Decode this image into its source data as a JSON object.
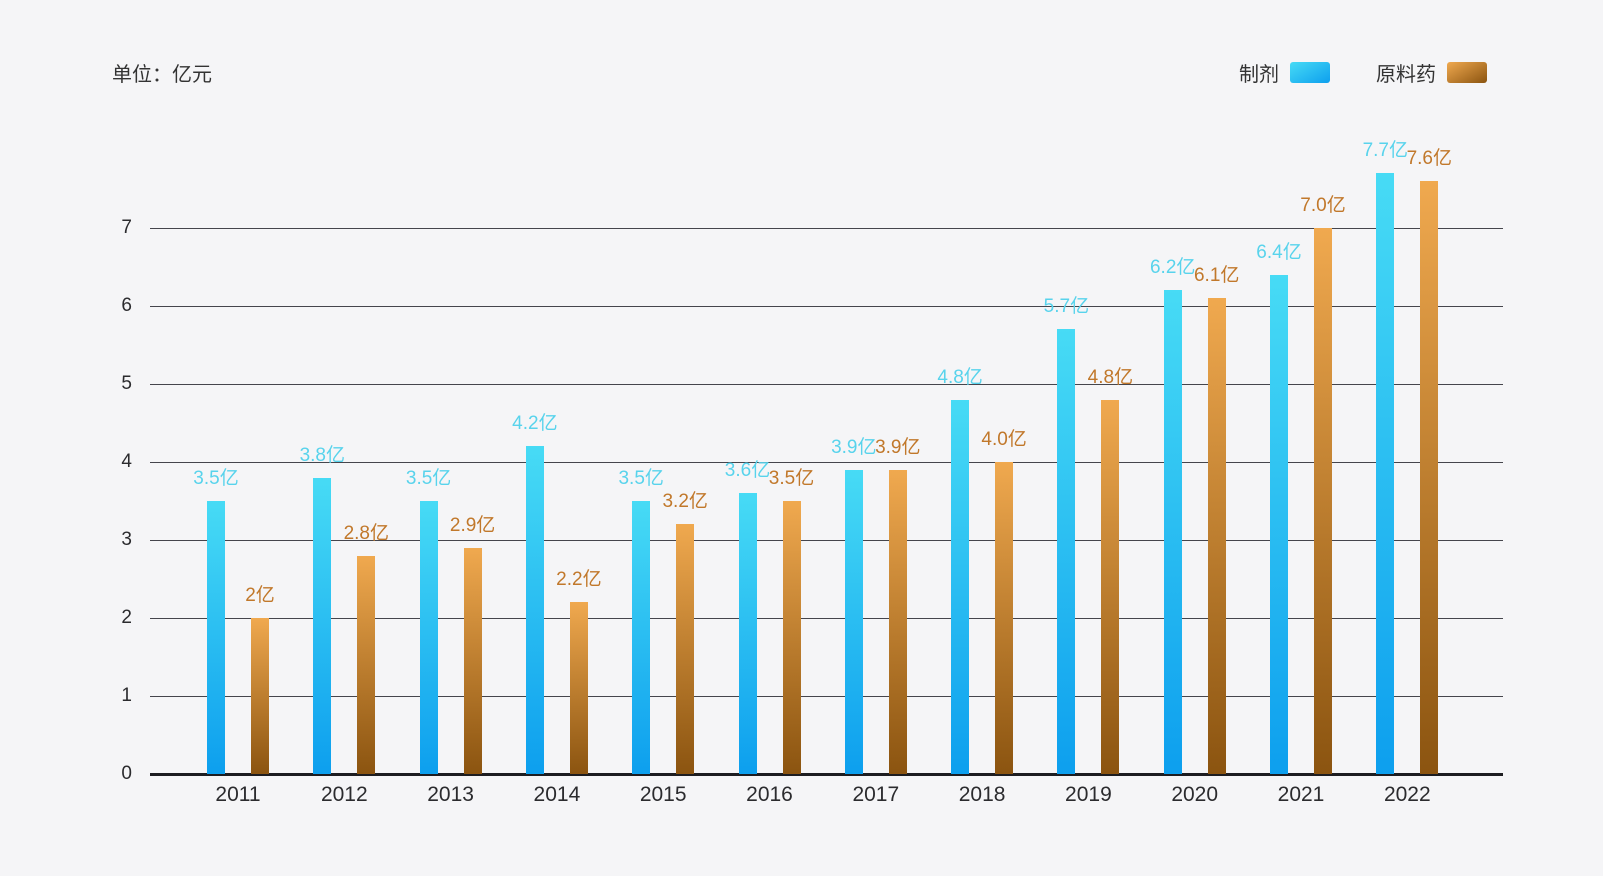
{
  "unit_label": "单位：亿元",
  "legend": {
    "items": [
      {
        "label": "制剂"
      },
      {
        "label": "原料药"
      }
    ]
  },
  "colors": {
    "background": "#f5f5f7",
    "series1_top": "#47dbf5",
    "series1_bottom": "#0d9fee",
    "series1_label": "#58d3ec",
    "series2_top": "#f0a94f",
    "series2_bottom": "#8b5410",
    "series2_label": "#c1782b",
    "axis_text": "#2b2b2e",
    "gridline": "#45454c",
    "baseline": "#1d1d21"
  },
  "chart_data": {
    "type": "bar",
    "title": "",
    "unit": "亿元",
    "categories": [
      "2011",
      "2012",
      "2013",
      "2014",
      "2015",
      "2016",
      "2017",
      "2018",
      "2019",
      "2020",
      "2021",
      "2022"
    ],
    "series": [
      {
        "name": "制剂",
        "values": [
          3.5,
          3.8,
          3.5,
          4.2,
          3.5,
          3.6,
          3.9,
          4.8,
          5.7,
          6.2,
          6.4,
          7.7
        ],
        "labels": [
          "3.5亿",
          "3.8亿",
          "3.5亿",
          "4.2亿",
          "3.5亿",
          "3.6亿",
          "3.9亿",
          "4.8亿",
          "5.7亿",
          "6.2亿",
          "6.4亿",
          "7.7亿"
        ]
      },
      {
        "name": "原料药",
        "values": [
          2,
          2.8,
          2.9,
          2.2,
          3.2,
          3.5,
          3.9,
          4.0,
          4.8,
          6.1,
          7.0,
          7.6
        ],
        "labels": [
          "2亿",
          "2.8亿",
          "2.9亿",
          "2.2亿",
          "3.2亿",
          "3.5亿",
          "3.9亿",
          "4.0亿",
          "4.8亿",
          "6.1亿",
          "7.0亿",
          "7.6亿"
        ]
      }
    ],
    "y_ticks": [
      0,
      1,
      2,
      3,
      4,
      5,
      6,
      7
    ],
    "ylabel": "",
    "xlabel": "",
    "ylim": [
      0,
      7.9
    ],
    "grid": true,
    "legend_position": "top-right"
  }
}
